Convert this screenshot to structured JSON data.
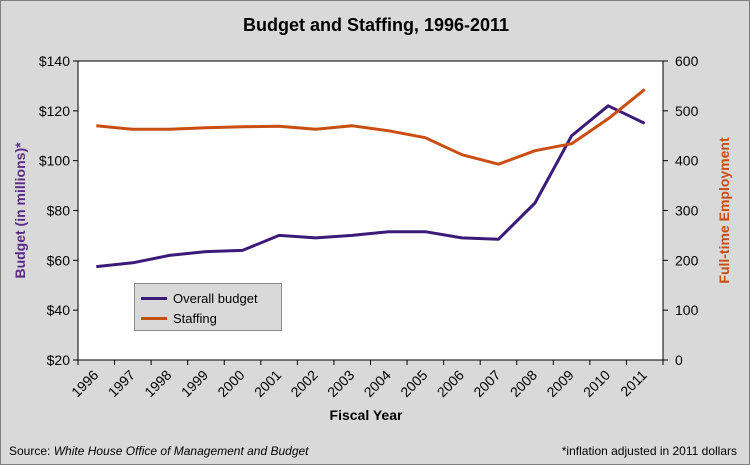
{
  "source_prefix": "Source: ",
  "source_name": "White House Office of Management and Budget",
  "footnote": "*inflation adjusted in 2011 dollars",
  "chart_data": {
    "type": "line",
    "title": "Budget and Staffing, 1996-2011",
    "xlabel": "Fiscal Year",
    "ylabel": "Budget (in millions)*",
    "y2label": "Full-time Employment",
    "x": [
      "1996",
      "1997",
      "1998",
      "1999",
      "2000",
      "2001",
      "2002",
      "2003",
      "2004",
      "2005",
      "2006",
      "2007",
      "2008",
      "2009",
      "2010",
      "2011"
    ],
    "ylim": [
      20,
      140
    ],
    "y_ticks": [
      "$20",
      "$40",
      "$60",
      "$80",
      "$100",
      "$120",
      "$140"
    ],
    "y2lim": [
      0,
      600
    ],
    "y2_ticks": [
      "0",
      "100",
      "200",
      "300",
      "400",
      "500",
      "600"
    ],
    "grid": false,
    "legend_position": "lower-left",
    "series": [
      {
        "name": "Overall budget",
        "axis": "left",
        "color": "#3b1a78",
        "values": [
          57.5,
          59,
          62,
          63.5,
          64,
          70,
          69,
          70,
          71.5,
          71.5,
          69,
          68.5,
          83,
          110,
          122,
          115
        ]
      },
      {
        "name": "Staffing",
        "axis": "right",
        "color": "#c94e12",
        "values": [
          470,
          463,
          463,
          466,
          468,
          469,
          463,
          470,
          460,
          446,
          412,
          393,
          420,
          434,
          484,
          543
        ]
      }
    ]
  }
}
